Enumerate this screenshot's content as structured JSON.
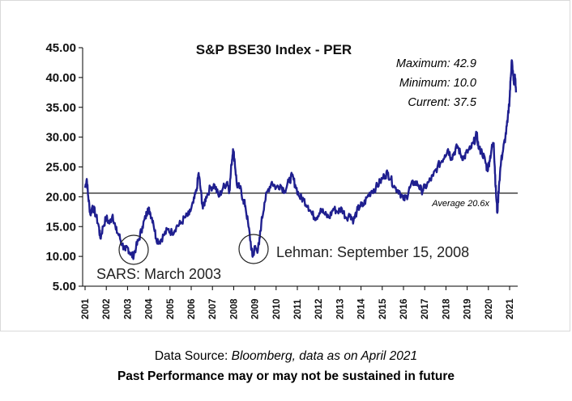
{
  "chart_data": {
    "type": "line",
    "title": "S&P BSE30 Index - PER",
    "xlabel": "",
    "ylabel": "",
    "ylim": [
      5,
      45
    ],
    "xlim": [
      2001,
      2021.35
    ],
    "y_ticks": [
      "45.00",
      "40.00",
      "35.00",
      "30.00",
      "25.00",
      "20.00",
      "15.00",
      "10.00",
      "5.00"
    ],
    "x_ticks": [
      "2001",
      "2002",
      "2003",
      "2004",
      "2005",
      "2006",
      "2007",
      "2008",
      "2009",
      "2010",
      "2011",
      "2012",
      "2013",
      "2014",
      "2015",
      "2016",
      "2017",
      "2018",
      "2019",
      "2020",
      "2021"
    ],
    "stats": {
      "maximum": "Maximum: 42.9",
      "minimum": "Minimum: 10.0",
      "current": "Current: 37.5"
    },
    "average": {
      "value": 20.6,
      "label": "Average 20.6x"
    },
    "annotations": [
      {
        "text": "SARS: March 2003",
        "x": 2003.2,
        "y": 10.5
      },
      {
        "text": "Lehman: September 15, 2008",
        "x": 2008.9,
        "y": 11.0
      }
    ],
    "series": [
      {
        "color": "#1f1f8f",
        "points": [
          [
            2001.0,
            21.5
          ],
          [
            2001.08,
            23.0
          ],
          [
            2001.15,
            20.0
          ],
          [
            2001.25,
            17.0
          ],
          [
            2001.35,
            18.5
          ],
          [
            2001.5,
            17.0
          ],
          [
            2001.65,
            15.0
          ],
          [
            2001.72,
            13.0
          ],
          [
            2001.85,
            15.0
          ],
          [
            2002.0,
            16.5
          ],
          [
            2002.15,
            15.5
          ],
          [
            2002.3,
            17.0
          ],
          [
            2002.45,
            14.5
          ],
          [
            2002.6,
            13.5
          ],
          [
            2002.75,
            12.0
          ],
          [
            2002.9,
            11.0
          ],
          [
            2003.0,
            11.5
          ],
          [
            2003.15,
            10.5
          ],
          [
            2003.25,
            10.0
          ],
          [
            2003.4,
            11.5
          ],
          [
            2003.55,
            13.0
          ],
          [
            2003.7,
            15.0
          ],
          [
            2003.85,
            16.5
          ],
          [
            2003.95,
            18.0
          ],
          [
            2004.05,
            17.5
          ],
          [
            2004.2,
            16.0
          ],
          [
            2004.35,
            13.0
          ],
          [
            2004.5,
            12.5
          ],
          [
            2004.7,
            13.5
          ],
          [
            2004.9,
            14.5
          ],
          [
            2005.1,
            14.0
          ],
          [
            2005.3,
            15.0
          ],
          [
            2005.5,
            15.5
          ],
          [
            2005.7,
            16.5
          ],
          [
            2005.9,
            17.0
          ],
          [
            2006.1,
            19.0
          ],
          [
            2006.25,
            21.0
          ],
          [
            2006.35,
            24.0
          ],
          [
            2006.45,
            21.0
          ],
          [
            2006.55,
            18.0
          ],
          [
            2006.7,
            20.0
          ],
          [
            2006.9,
            21.5
          ],
          [
            2007.1,
            22.0
          ],
          [
            2007.3,
            20.0
          ],
          [
            2007.5,
            21.5
          ],
          [
            2007.7,
            22.5
          ],
          [
            2007.8,
            21.0
          ],
          [
            2007.9,
            25.5
          ],
          [
            2007.97,
            28.0
          ],
          [
            2008.05,
            26.0
          ],
          [
            2008.15,
            22.0
          ],
          [
            2008.3,
            21.5
          ],
          [
            2008.45,
            19.5
          ],
          [
            2008.55,
            18.5
          ],
          [
            2008.7,
            15.0
          ],
          [
            2008.85,
            11.0
          ],
          [
            2008.9,
            10.0
          ],
          [
            2009.0,
            11.5
          ],
          [
            2009.1,
            11.0
          ],
          [
            2009.2,
            12.0
          ],
          [
            2009.3,
            15.5
          ],
          [
            2009.45,
            19.0
          ],
          [
            2009.6,
            21.0
          ],
          [
            2009.8,
            22.5
          ],
          [
            2010.0,
            21.5
          ],
          [
            2010.2,
            22.0
          ],
          [
            2010.4,
            21.0
          ],
          [
            2010.6,
            22.5
          ],
          [
            2010.75,
            23.5
          ],
          [
            2010.9,
            22.0
          ],
          [
            2011.1,
            20.0
          ],
          [
            2011.3,
            19.5
          ],
          [
            2011.5,
            18.5
          ],
          [
            2011.7,
            17.0
          ],
          [
            2011.9,
            16.5
          ],
          [
            2012.1,
            18.0
          ],
          [
            2012.3,
            17.0
          ],
          [
            2012.5,
            16.5
          ],
          [
            2012.7,
            18.0
          ],
          [
            2012.9,
            17.5
          ],
          [
            2013.1,
            18.0
          ],
          [
            2013.3,
            16.5
          ],
          [
            2013.5,
            17.0
          ],
          [
            2013.65,
            16.0
          ],
          [
            2013.8,
            17.5
          ],
          [
            2013.95,
            18.5
          ],
          [
            2014.1,
            18.5
          ],
          [
            2014.3,
            20.0
          ],
          [
            2014.5,
            21.0
          ],
          [
            2014.7,
            21.5
          ],
          [
            2014.9,
            22.5
          ],
          [
            2015.1,
            23.5
          ],
          [
            2015.25,
            24.0
          ],
          [
            2015.4,
            23.0
          ],
          [
            2015.6,
            21.5
          ],
          [
            2015.8,
            21.0
          ],
          [
            2016.0,
            19.5
          ],
          [
            2016.15,
            20.0
          ],
          [
            2016.3,
            21.5
          ],
          [
            2016.5,
            22.5
          ],
          [
            2016.7,
            22.0
          ],
          [
            2016.85,
            21.0
          ],
          [
            2017.0,
            21.5
          ],
          [
            2017.2,
            22.5
          ],
          [
            2017.4,
            23.5
          ],
          [
            2017.6,
            25.0
          ],
          [
            2017.8,
            26.0
          ],
          [
            2017.95,
            27.0
          ],
          [
            2018.1,
            28.0
          ],
          [
            2018.25,
            26.5
          ],
          [
            2018.4,
            27.5
          ],
          [
            2018.55,
            28.5
          ],
          [
            2018.7,
            27.0
          ],
          [
            2018.85,
            26.5
          ],
          [
            2019.0,
            27.5
          ],
          [
            2019.15,
            28.0
          ],
          [
            2019.3,
            29.0
          ],
          [
            2019.45,
            30.5
          ],
          [
            2019.55,
            28.0
          ],
          [
            2019.7,
            27.5
          ],
          [
            2019.85,
            26.0
          ],
          [
            2019.95,
            24.5
          ],
          [
            2020.05,
            26.0
          ],
          [
            2020.15,
            28.0
          ],
          [
            2020.25,
            29.0
          ],
          [
            2020.3,
            25.0
          ],
          [
            2020.36,
            20.5
          ],
          [
            2020.42,
            17.3
          ],
          [
            2020.5,
            22.0
          ],
          [
            2020.6,
            26.0
          ],
          [
            2020.7,
            28.0
          ],
          [
            2020.8,
            30.0
          ],
          [
            2020.9,
            32.5
          ],
          [
            2021.0,
            36.5
          ],
          [
            2021.05,
            40.0
          ],
          [
            2021.1,
            42.9
          ],
          [
            2021.15,
            41.0
          ],
          [
            2021.2,
            39.0
          ],
          [
            2021.25,
            40.5
          ],
          [
            2021.3,
            37.5
          ]
        ]
      }
    ]
  },
  "caption": {
    "source_label": "Data Source:",
    "source_value": " Bloomberg, data as on April 2021",
    "disclaimer": "Past Performance may or may not be sustained in future"
  }
}
